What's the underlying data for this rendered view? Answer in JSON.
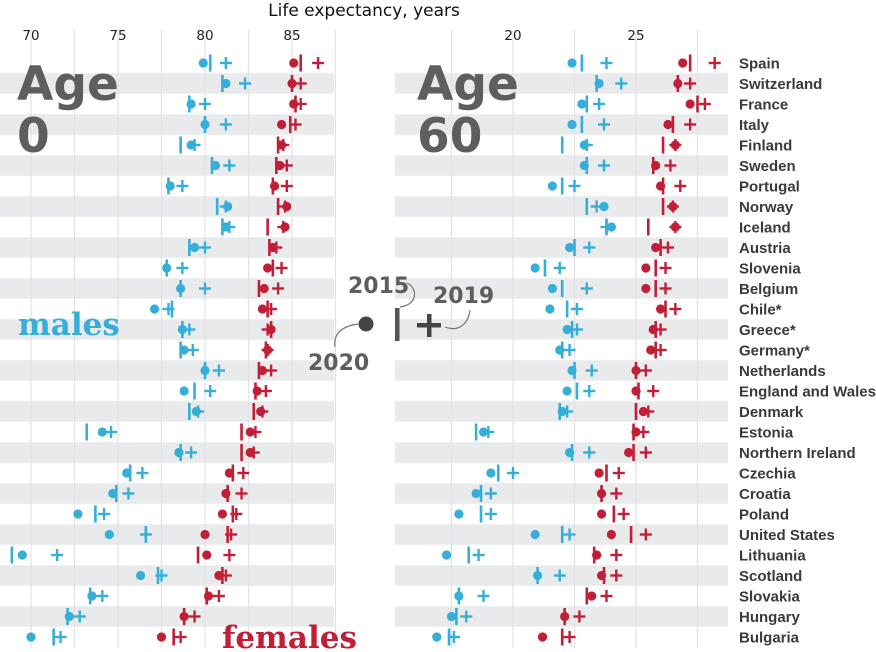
{
  "chart_data": {
    "type": "scatter",
    "title": "Life expectancy, years",
    "colors": {
      "males": "#35aed8",
      "females": "#c11f38",
      "stripe": "#e9eaec",
      "grid": "#e2e2e2",
      "legend": "#5e5e5e"
    },
    "legend": {
      "entries": [
        {
          "year": "2020",
          "marker": "dot"
        },
        {
          "year": "2015",
          "marker": "bar"
        },
        {
          "year": "2019",
          "marker": "plus"
        }
      ],
      "placement": "center"
    },
    "series_labels": {
      "males": "males",
      "females": "females"
    },
    "panels": [
      {
        "name": "age0",
        "heading_line1": "Age",
        "heading_line2": "0",
        "xlim": [
          68.5,
          88
        ],
        "ticks": [
          70,
          75,
          80,
          85
        ],
        "tick_labels": [
          "70",
          "75",
          "80",
          "85"
        ],
        "grid": [
          70,
          72.5,
          75,
          77.5,
          80,
          82.5,
          85,
          87.5
        ]
      },
      {
        "name": "age60",
        "heading_line1": "Age",
        "heading_line2": "60",
        "xlim": [
          16.6,
          29.5
        ],
        "ticks": [
          20,
          25
        ],
        "tick_labels": [
          "20",
          "25"
        ],
        "grid": [
          17.5,
          20,
          22.5,
          25,
          27.5
        ]
      }
    ],
    "countries": [
      "Spain",
      "Switzerland",
      "France",
      "Italy",
      "Finland",
      "Sweden",
      "Portugal",
      "Norway",
      "Iceland",
      "Austria",
      "Slovenia",
      "Belgium",
      "Chile*",
      "Greece*",
      "Germany*",
      "Netherlands",
      "England and Wales",
      "Denmark",
      "Estonia",
      "Northern Ireland",
      "Czechia",
      "Croatia",
      "Poland",
      "United States",
      "Lithuania",
      "Scotland",
      "Slovakia",
      "Hungary",
      "Bulgaria"
    ],
    "age0": {
      "males": {
        "y2020": [
          79.9,
          81.2,
          79.2,
          80.0,
          79.2,
          80.6,
          78.0,
          81.3,
          81.2,
          79.4,
          77.8,
          78.6,
          77.1,
          78.7,
          78.8,
          80.0,
          78.8,
          79.5,
          74.1,
          78.5,
          75.5,
          74.7,
          72.7,
          74.5,
          69.5,
          76.3,
          73.5,
          72.2,
          70.0
        ],
        "y2015": [
          80.3,
          81.0,
          79.1,
          80.0,
          78.6,
          80.4,
          77.9,
          80.7,
          81.0,
          79.1,
          77.8,
          78.6,
          78.1,
          78.7,
          78.6,
          80.0,
          79.4,
          79.1,
          73.2,
          78.6,
          75.7,
          74.9,
          73.7,
          76.6,
          68.9,
          77.3,
          73.4,
          72.1,
          71.3
        ],
        "y2019": [
          81.2,
          82.3,
          80.0,
          81.2,
          79.4,
          81.4,
          78.7,
          81.2,
          81.4,
          80.0,
          78.7,
          80.0,
          77.9,
          79.1,
          79.3,
          80.8,
          80.3,
          79.6,
          74.6,
          79.2,
          76.4,
          75.6,
          74.2,
          76.6,
          71.5,
          77.5,
          74.1,
          72.8,
          71.7
        ]
      },
      "females": {
        "y2020": [
          85.1,
          85.0,
          85.1,
          84.4,
          84.4,
          84.3,
          84.0,
          84.7,
          84.6,
          83.9,
          83.6,
          83.4,
          83.3,
          83.8,
          83.6,
          83.3,
          83.0,
          83.2,
          82.6,
          82.6,
          81.4,
          81.2,
          81.0,
          80.0,
          80.1,
          80.8,
          80.2,
          78.8,
          77.5
        ],
        "y2015": [
          85.5,
          85.0,
          85.2,
          84.9,
          84.2,
          84.1,
          83.9,
          84.2,
          83.6,
          83.7,
          83.9,
          83.1,
          83.6,
          83.8,
          83.5,
          83.1,
          82.9,
          82.8,
          82.1,
          82.1,
          81.6,
          81.3,
          81.6,
          81.3,
          79.6,
          81.0,
          80.1,
          78.8,
          78.2
        ],
        "y2019": [
          86.5,
          85.5,
          85.5,
          85.2,
          84.5,
          84.7,
          84.7,
          84.6,
          84.5,
          84.1,
          84.4,
          84.2,
          83.8,
          83.6,
          83.6,
          83.8,
          83.5,
          83.3,
          82.9,
          82.8,
          82.2,
          82.1,
          81.8,
          81.5,
          81.4,
          81.2,
          80.8,
          79.4,
          78.6
        ]
      }
    },
    "age60": {
      "males": {
        "y2020": [
          22.4,
          23.5,
          22.8,
          22.4,
          22.9,
          22.9,
          21.6,
          23.7,
          24.0,
          22.3,
          20.9,
          21.6,
          21.5,
          22.2,
          21.9,
          22.4,
          22.2,
          22.0,
          18.8,
          22.3,
          19.1,
          18.5,
          17.8,
          20.9,
          17.3,
          21.0,
          17.8,
          17.5,
          16.9
        ],
        "y2015": [
          22.8,
          23.4,
          23.0,
          22.8,
          22.0,
          23.0,
          22.0,
          23.0,
          23.8,
          22.5,
          21.3,
          22.0,
          22.2,
          22.4,
          22.0,
          22.5,
          22.6,
          21.9,
          18.5,
          22.4,
          19.4,
          18.7,
          18.7,
          22.0,
          18.2,
          21.0,
          17.8,
          17.7,
          17.4
        ],
        "y2019": [
          23.8,
          24.4,
          23.5,
          23.7,
          23.0,
          23.7,
          22.5,
          23.4,
          23.8,
          23.1,
          21.9,
          23.0,
          22.6,
          22.6,
          22.3,
          23.2,
          23.1,
          22.2,
          19.0,
          23.1,
          20.0,
          19.1,
          19.1,
          22.3,
          18.6,
          21.9,
          18.8,
          18.1,
          17.6
        ],
        "y2020_note": ""
      },
      "females": {
        "y2020": [
          26.9,
          26.7,
          27.2,
          26.3,
          26.6,
          25.8,
          26.0,
          26.5,
          26.6,
          25.8,
          25.4,
          25.4,
          26.0,
          25.7,
          25.6,
          25.0,
          25.0,
          25.3,
          25.0,
          24.7,
          23.5,
          23.6,
          23.6,
          24.0,
          23.4,
          23.6,
          23.2,
          22.1,
          21.2
        ],
        "y2015": [
          27.2,
          26.7,
          27.5,
          26.5,
          26.1,
          25.7,
          26.1,
          26.1,
          25.5,
          26.0,
          25.8,
          25.8,
          26.2,
          25.8,
          25.8,
          25.0,
          25.1,
          25.0,
          24.9,
          24.9,
          23.8,
          23.6,
          24.1,
          24.8,
          23.3,
          23.7,
          23.0,
          22.1,
          22.0
        ],
        "y2019": [
          28.2,
          27.2,
          27.8,
          27.2,
          26.6,
          26.4,
          26.8,
          26.5,
          26.6,
          26.3,
          26.2,
          26.2,
          26.6,
          26.0,
          26.0,
          25.4,
          25.7,
          25.5,
          25.3,
          25.4,
          24.3,
          24.2,
          24.5,
          25.4,
          24.2,
          24.2,
          23.8,
          22.7,
          22.3
        ]
      }
    }
  }
}
